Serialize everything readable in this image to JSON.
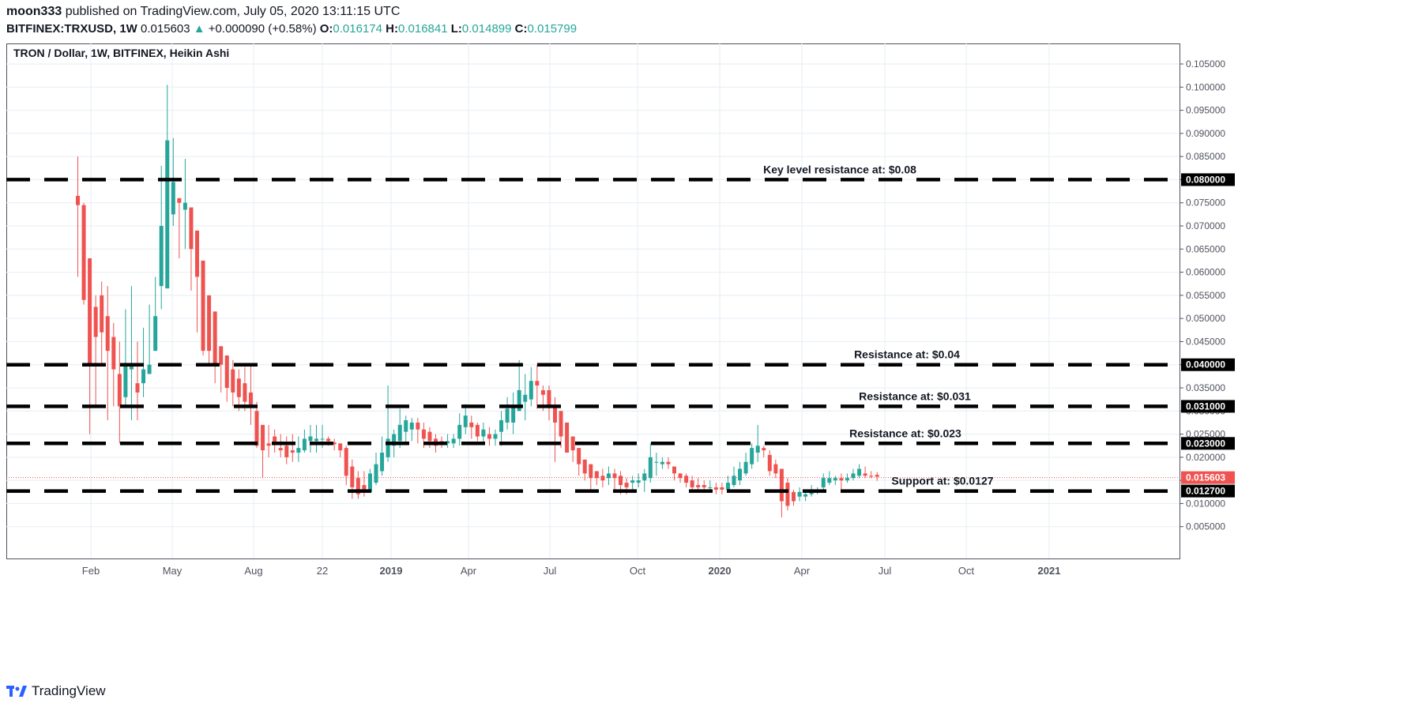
{
  "header": {
    "publisher": "moon333",
    "published_text": "published on TradingView.com, July 05, 2020 13:11:15 UTC",
    "symbol": "BITFINEX:TRXUSD, 1W",
    "last": "0.015603",
    "change": "+0.000090 (+0.58%)",
    "o_label": "O:",
    "o": "0.016174",
    "h_label": "H:",
    "h": "0.016841",
    "l_label": "L:",
    "l": "0.014899",
    "c_label": "C:",
    "c": "0.015799"
  },
  "footer": {
    "brand": "TradingView"
  },
  "colors": {
    "up": "#26a69a",
    "down": "#ef5350",
    "grid": "#e6eef3",
    "price_line": "#ef5350"
  },
  "chart_data": {
    "type": "candlestick",
    "title": "TRON / Dollar, 1W, BITFINEX, Heikin Ashi",
    "ylim": [
      0.0,
      0.105
    ],
    "y_ticks": [
      "0.005000",
      "0.010000",
      "0.015000",
      "0.020000",
      "0.025000",
      "0.030000",
      "0.035000",
      "0.040000",
      "0.045000",
      "0.050000",
      "0.055000",
      "0.060000",
      "0.065000",
      "0.070000",
      "0.075000",
      "0.080000",
      "0.085000",
      "0.090000",
      "0.095000",
      "0.100000",
      "0.105000"
    ],
    "x_ticks": [
      "Feb",
      "May",
      "Aug",
      "22",
      "2019",
      "Apr",
      "Jul",
      "Oct",
      "2020",
      "Apr",
      "Jul",
      "Oct",
      "2021"
    ],
    "levels": [
      {
        "label": "Key level resistance at: $0.08",
        "value": 0.08,
        "tag": "0.080000"
      },
      {
        "label": "Resistance at: $0.04",
        "value": 0.04,
        "tag": "0.040000"
      },
      {
        "label": "Resistance at: $0.031",
        "value": 0.031,
        "tag": "0.031000"
      },
      {
        "label": "Resistance at: $0.023",
        "value": 0.023,
        "tag": "0.023000"
      },
      {
        "label": "Support at: $0.0127",
        "value": 0.0127,
        "tag": "0.012700"
      }
    ],
    "current_price": {
      "value": 0.015603,
      "tag": "0.015603"
    },
    "candles": [
      [
        0.0765,
        0.085,
        0.059,
        0.0745
      ],
      [
        0.0745,
        0.075,
        0.053,
        0.054
      ],
      [
        0.063,
        0.063,
        0.025,
        0.04
      ],
      [
        0.0525,
        0.055,
        0.031,
        0.046
      ],
      [
        0.055,
        0.058,
        0.04,
        0.047
      ],
      [
        0.0505,
        0.057,
        0.028,
        0.043
      ],
      [
        0.046,
        0.049,
        0.031,
        0.039
      ],
      [
        0.038,
        0.045,
        0.023,
        0.031
      ],
      [
        0.033,
        0.052,
        0.031,
        0.04
      ],
      [
        0.039,
        0.057,
        0.028,
        0.04
      ],
      [
        0.036,
        0.045,
        0.028,
        0.034
      ],
      [
        0.036,
        0.048,
        0.033,
        0.039
      ],
      [
        0.038,
        0.053,
        0.038,
        0.04
      ],
      [
        0.043,
        0.059,
        0.043,
        0.0505
      ],
      [
        0.057,
        0.083,
        0.052,
        0.07
      ],
      [
        0.0565,
        0.1005,
        0.0565,
        0.0885
      ],
      [
        0.0725,
        0.089,
        0.07,
        0.0795
      ],
      [
        0.076,
        0.076,
        0.063,
        0.075
      ],
      [
        0.0735,
        0.0845,
        0.065,
        0.075
      ],
      [
        0.074,
        0.074,
        0.056,
        0.065
      ],
      [
        0.069,
        0.069,
        0.047,
        0.059
      ],
      [
        0.0625,
        0.0625,
        0.042,
        0.043
      ],
      [
        0.055,
        0.055,
        0.04,
        0.043
      ],
      [
        0.0515,
        0.0515,
        0.036,
        0.04
      ],
      [
        0.044,
        0.044,
        0.034,
        0.04
      ],
      [
        0.042,
        0.042,
        0.032,
        0.035
      ],
      [
        0.039,
        0.041,
        0.031,
        0.034
      ],
      [
        0.037,
        0.039,
        0.03,
        0.033
      ],
      [
        0.036,
        0.0395,
        0.03,
        0.032
      ],
      [
        0.034,
        0.04,
        0.027,
        0.031
      ],
      [
        0.03,
        0.032,
        0.022,
        0.0225
      ],
      [
        0.027,
        0.027,
        0.0155,
        0.0215
      ],
      [
        0.023,
        0.027,
        0.02,
        0.0225
      ],
      [
        0.0245,
        0.026,
        0.021,
        0.023
      ],
      [
        0.022,
        0.025,
        0.02,
        0.0215
      ],
      [
        0.0225,
        0.0245,
        0.0185,
        0.02
      ],
      [
        0.0215,
        0.025,
        0.019,
        0.021
      ],
      [
        0.021,
        0.0245,
        0.019,
        0.022
      ],
      [
        0.0215,
        0.026,
        0.021,
        0.024
      ],
      [
        0.0235,
        0.027,
        0.021,
        0.0245
      ],
      [
        0.0235,
        0.027,
        0.021,
        0.024
      ],
      [
        0.024,
        0.027,
        0.022,
        0.024
      ],
      [
        0.024,
        0.0245,
        0.0225,
        0.0235
      ],
      [
        0.0232,
        0.024,
        0.0215,
        0.0228
      ],
      [
        0.023,
        0.023,
        0.02,
        0.0215
      ],
      [
        0.022,
        0.0225,
        0.014,
        0.016
      ],
      [
        0.018,
        0.0195,
        0.011,
        0.0135
      ],
      [
        0.0155,
        0.017,
        0.011,
        0.012
      ],
      [
        0.014,
        0.017,
        0.0115,
        0.0125
      ],
      [
        0.0125,
        0.0175,
        0.0125,
        0.0165
      ],
      [
        0.0145,
        0.021,
        0.014,
        0.0185
      ],
      [
        0.017,
        0.0245,
        0.016,
        0.021
      ],
      [
        0.02,
        0.0355,
        0.019,
        0.024
      ],
      [
        0.0225,
        0.026,
        0.02,
        0.025
      ],
      [
        0.0235,
        0.0305,
        0.022,
        0.027
      ],
      [
        0.0255,
        0.029,
        0.023,
        0.028
      ],
      [
        0.026,
        0.0285,
        0.0235,
        0.0275
      ],
      [
        0.0275,
        0.0285,
        0.023,
        0.026
      ],
      [
        0.026,
        0.0275,
        0.022,
        0.024
      ],
      [
        0.0255,
        0.0265,
        0.022,
        0.0235
      ],
      [
        0.024,
        0.025,
        0.021,
        0.0225
      ],
      [
        0.0235,
        0.0245,
        0.022,
        0.023
      ],
      [
        0.023,
        0.025,
        0.022,
        0.0235
      ],
      [
        0.023,
        0.025,
        0.022,
        0.024
      ],
      [
        0.024,
        0.0295,
        0.0225,
        0.027
      ],
      [
        0.0265,
        0.0315,
        0.025,
        0.029
      ],
      [
        0.0275,
        0.029,
        0.024,
        0.0265
      ],
      [
        0.027,
        0.0275,
        0.0235,
        0.0245
      ],
      [
        0.0245,
        0.0275,
        0.023,
        0.026
      ],
      [
        0.025,
        0.0265,
        0.0225,
        0.024
      ],
      [
        0.024,
        0.026,
        0.0225,
        0.025
      ],
      [
        0.0255,
        0.03,
        0.0225,
        0.028
      ],
      [
        0.0275,
        0.033,
        0.026,
        0.0305
      ],
      [
        0.0275,
        0.034,
        0.025,
        0.031
      ],
      [
        0.03,
        0.041,
        0.03,
        0.0345
      ],
      [
        0.032,
        0.038,
        0.028,
        0.0335
      ],
      [
        0.0325,
        0.0395,
        0.031,
        0.0365
      ],
      [
        0.0365,
        0.04,
        0.0305,
        0.0355
      ],
      [
        0.0345,
        0.0355,
        0.03,
        0.0335
      ],
      [
        0.0345,
        0.0355,
        0.028,
        0.031
      ],
      [
        0.031,
        0.033,
        0.019,
        0.0275
      ],
      [
        0.03,
        0.03,
        0.022,
        0.0245
      ],
      [
        0.0275,
        0.0275,
        0.0215,
        0.021
      ],
      [
        0.0245,
        0.0245,
        0.019,
        0.0215
      ],
      [
        0.022,
        0.022,
        0.016,
        0.0185
      ],
      [
        0.0195,
        0.0195,
        0.015,
        0.0165
      ],
      [
        0.0185,
        0.0185,
        0.013,
        0.0155
      ],
      [
        0.017,
        0.017,
        0.014,
        0.0155
      ],
      [
        0.016,
        0.0175,
        0.0135,
        0.015
      ],
      [
        0.0155,
        0.018,
        0.014,
        0.0165
      ],
      [
        0.0165,
        0.0175,
        0.013,
        0.0155
      ],
      [
        0.016,
        0.017,
        0.012,
        0.014
      ],
      [
        0.0145,
        0.0155,
        0.012,
        0.0135
      ],
      [
        0.0145,
        0.016,
        0.013,
        0.015
      ],
      [
        0.0145,
        0.0165,
        0.0135,
        0.015
      ],
      [
        0.015,
        0.0175,
        0.0125,
        0.0165
      ],
      [
        0.0155,
        0.023,
        0.0145,
        0.02
      ],
      [
        0.019,
        0.021,
        0.016,
        0.019
      ],
      [
        0.0185,
        0.02,
        0.0175,
        0.019
      ],
      [
        0.019,
        0.02,
        0.0175,
        0.0185
      ],
      [
        0.018,
        0.018,
        0.015,
        0.0165
      ],
      [
        0.0165,
        0.0165,
        0.0145,
        0.0155
      ],
      [
        0.016,
        0.0165,
        0.0135,
        0.0145
      ],
      [
        0.015,
        0.016,
        0.0125,
        0.0135
      ],
      [
        0.014,
        0.0155,
        0.0125,
        0.0135
      ],
      [
        0.014,
        0.015,
        0.0125,
        0.0135
      ],
      [
        0.0135,
        0.015,
        0.0125,
        0.0135
      ],
      [
        0.0135,
        0.0145,
        0.012,
        0.013
      ],
      [
        0.0135,
        0.0145,
        0.012,
        0.013
      ],
      [
        0.013,
        0.016,
        0.0125,
        0.0145
      ],
      [
        0.014,
        0.018,
        0.0135,
        0.016
      ],
      [
        0.015,
        0.019,
        0.014,
        0.0175
      ],
      [
        0.0165,
        0.021,
        0.016,
        0.019
      ],
      [
        0.0185,
        0.023,
        0.0175,
        0.022
      ],
      [
        0.021,
        0.027,
        0.019,
        0.0225
      ],
      [
        0.022,
        0.0225,
        0.02,
        0.0215
      ],
      [
        0.0205,
        0.0215,
        0.016,
        0.017
      ],
      [
        0.0185,
        0.0195,
        0.0155,
        0.0165
      ],
      [
        0.0175,
        0.0175,
        0.007,
        0.0105
      ],
      [
        0.0145,
        0.0155,
        0.0085,
        0.0095
      ],
      [
        0.0125,
        0.013,
        0.0095,
        0.0105
      ],
      [
        0.0115,
        0.0135,
        0.0105,
        0.0125
      ],
      [
        0.0115,
        0.0125,
        0.0105,
        0.012
      ],
      [
        0.012,
        0.014,
        0.0115,
        0.013
      ],
      [
        0.0125,
        0.0135,
        0.012,
        0.013
      ],
      [
        0.0135,
        0.0165,
        0.013,
        0.0155
      ],
      [
        0.0145,
        0.017,
        0.014,
        0.0155
      ],
      [
        0.015,
        0.016,
        0.014,
        0.0155
      ],
      [
        0.0155,
        0.0165,
        0.013,
        0.015
      ],
      [
        0.015,
        0.0165,
        0.0145,
        0.0155
      ],
      [
        0.0155,
        0.0175,
        0.015,
        0.0165
      ],
      [
        0.016,
        0.0185,
        0.0155,
        0.0175
      ],
      [
        0.0165,
        0.018,
        0.0155,
        0.016
      ],
      [
        0.016,
        0.017,
        0.0155,
        0.0158
      ],
      [
        0.0162,
        0.0168,
        0.0149,
        0.0158
      ]
    ]
  }
}
